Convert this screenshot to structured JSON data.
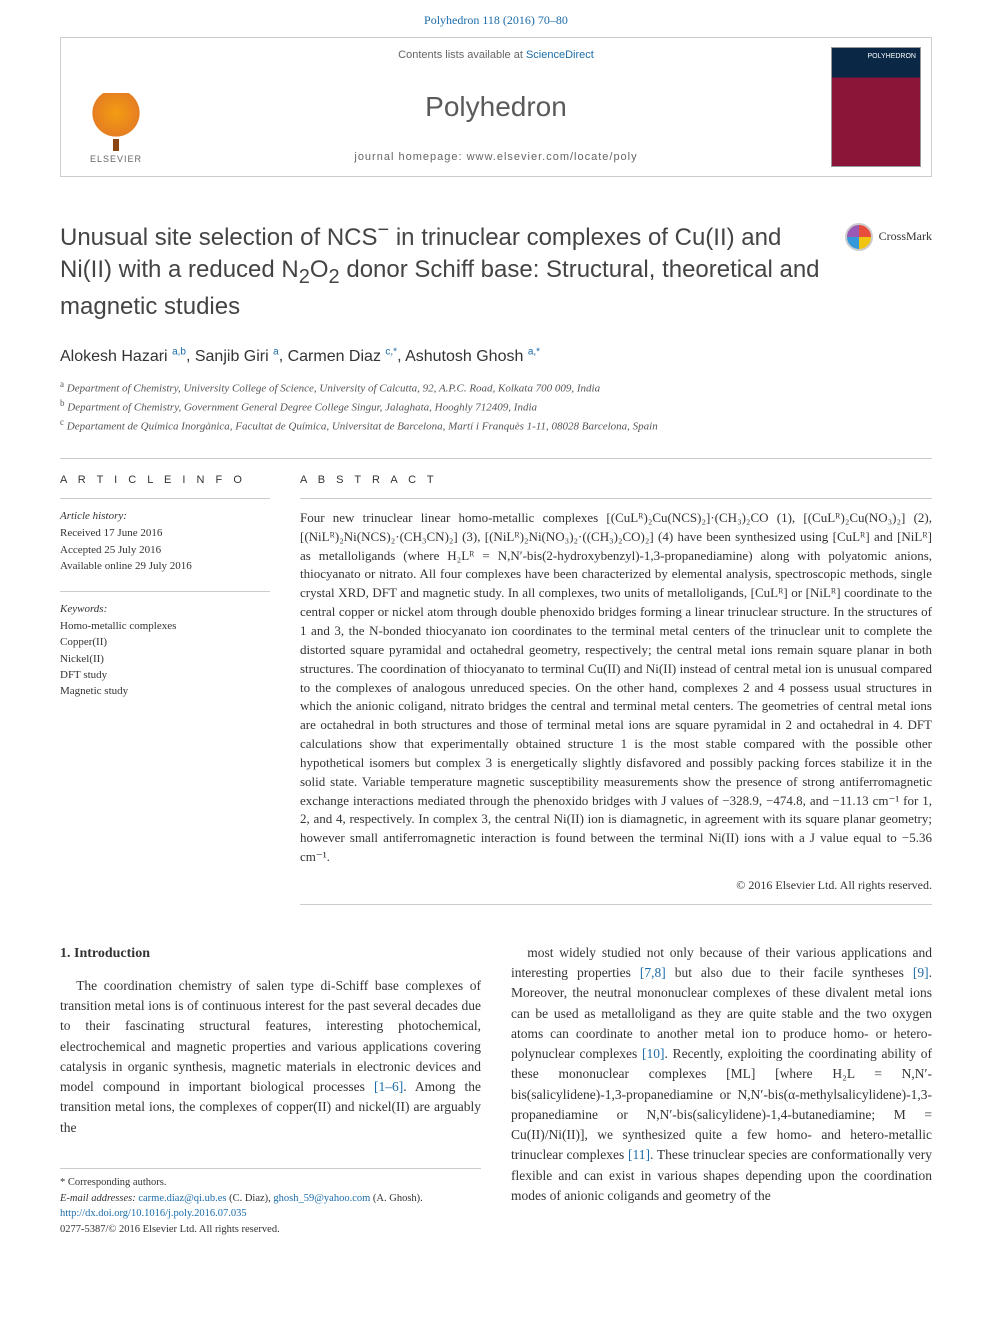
{
  "citation": "Polyhedron 118 (2016) 70–80",
  "header": {
    "contents_prefix": "Contents lists available at ",
    "contents_link": "ScienceDirect",
    "journal": "Polyhedron",
    "homepage_prefix": "journal homepage: ",
    "homepage_url": "www.elsevier.com/locate/poly",
    "publisher": "ELSEVIER",
    "cover_label": "POLYHEDRON"
  },
  "crossmark": "CrossMark",
  "title_parts": {
    "p1": "Unusual site selection of NCS",
    "sup1": "−",
    "p2": " in trinuclear complexes of Cu(II) and Ni(II) with a reduced N",
    "sub1": "2",
    "p3": "O",
    "sub2": "2",
    "p4": " donor Schiff base: Structural, theoretical and magnetic studies"
  },
  "authors": [
    {
      "name": "Alokesh Hazari",
      "aff": "a,b"
    },
    {
      "name": "Sanjib Giri",
      "aff": "a"
    },
    {
      "name": "Carmen Diaz",
      "aff": "c,*"
    },
    {
      "name": "Ashutosh Ghosh",
      "aff": "a,*"
    }
  ],
  "affiliations": [
    {
      "key": "a",
      "text": "Department of Chemistry, University College of Science, University of Calcutta, 92, A.P.C. Road, Kolkata 700 009, India"
    },
    {
      "key": "b",
      "text": "Department of Chemistry, Government General Degree College Singur, Jalaghata, Hooghly 712409, India"
    },
    {
      "key": "c",
      "text": "Departament de Química Inorgànica, Facultat de Química, Universitat de Barcelona, Martí i Franquès 1-11, 08028 Barcelona, Spain"
    }
  ],
  "article_info": {
    "heading": "A R T I C L E   I N F O",
    "history_h": "Article history:",
    "received": "Received 17 June 2016",
    "accepted": "Accepted 25 July 2016",
    "online": "Available online 29 July 2016",
    "keywords_h": "Keywords:",
    "keywords": [
      "Homo-metallic complexes",
      "Copper(II)",
      "Nickel(II)",
      "DFT study",
      "Magnetic study"
    ]
  },
  "abstract": {
    "heading": "A B S T R A C T",
    "text": "Four new trinuclear linear homo-metallic complexes [(CuLᴿ)₂Cu(NCS)₂]·(CH₃)₂CO (1), [(CuLᴿ)₂Cu(NO₃)₂] (2), [(NiLᴿ)₂Ni(NCS)₂·(CH₃CN)₂] (3), [(NiLᴿ)₂Ni(NO₃)₂·((CH₃)₂CO)₂] (4) have been synthesized using [CuLᴿ] and [NiLᴿ] as metalloligands (where H₂Lᴿ = N,N′-bis(2-hydroxybenzyl)-1,3-propanediamine) along with polyatomic anions, thiocyanato or nitrato. All four complexes have been characterized by elemental analysis, spectroscopic methods, single crystal XRD, DFT and magnetic study. In all complexes, two units of metalloligands, [CuLᴿ] or [NiLᴿ] coordinate to the central copper or nickel atom through double phenoxido bridges forming a linear trinuclear structure. In the structures of 1 and 3, the N-bonded thiocyanato ion coordinates to the terminal metal centers of the trinuclear unit to complete the distorted square pyramidal and octahedral geometry, respectively; the central metal ions remain square planar in both structures. The coordination of thiocyanato to terminal Cu(II) and Ni(II) instead of central metal ion is unusual compared to the complexes of analogous unreduced species. On the other hand, complexes 2 and 4 possess usual structures in which the anionic coligand, nitrato bridges the central and terminal metal centers. The geometries of central metal ions are octahedral in both structures and those of terminal metal ions are square pyramidal in 2 and octahedral in 4. DFT calculations show that experimentally obtained structure 1 is the most stable compared with the possible other hypothetical isomers but complex 3 is energetically slightly disfavored and possibly packing forces stabilize it in the solid state. Variable temperature magnetic susceptibility measurements show the presence of strong antiferromagnetic exchange interactions mediated through the phenoxido bridges with J values of −328.9, −474.8, and −11.13 cm⁻¹ for 1, 2, and 4, respectively. In complex 3, the central Ni(II) ion is diamagnetic, in agreement with its square planar geometry; however small antiferromagnetic interaction is found between the terminal Ni(II) ions with a J value equal to −5.36 cm⁻¹.",
    "copyright": "© 2016 Elsevier Ltd. All rights reserved."
  },
  "intro": {
    "heading": "1. Introduction",
    "col1": "The coordination chemistry of salen type di-Schiff base complexes of transition metal ions is of continuous interest for the past several decades due to their fascinating structural features, interesting photochemical, electrochemical and magnetic properties and various applications covering catalysis in organic synthesis, magnetic materials in electronic devices and model compound in important biological processes [1–6]. Among the transition metal ions, the complexes of copper(II) and nickel(II) are arguably the",
    "col2": "most widely studied not only because of their various applications and interesting properties [7,8] but also due to their facile syntheses [9]. Moreover, the neutral mononuclear complexes of these divalent metal ions can be used as metalloligand as they are quite stable and the two oxygen atoms can coordinate to another metal ion to produce homo- or hetero-polynuclear complexes [10]. Recently, exploiting the coordinating ability of these mononuclear complexes [ML] [where H₂L = N,N′-bis(salicylidene)-1,3-propanediamine or N,N′-bis(α-methylsalicylidene)-1,3-propanediamine or N,N′-bis(salicylidene)-1,4-butanediamine; M = Cu(II)/Ni(II)], we synthesized quite a few homo- and hetero-metallic trinuclear complexes [11]. These trinuclear species are conformationally very flexible and can exist in various shapes depending upon the coordination modes of anionic coligands and geometry of the",
    "ref_ranges": {
      "r1": "[1–6]",
      "r2": "[7,8]",
      "r3": "[9]",
      "r4": "[10]",
      "r5": "[11]"
    }
  },
  "footnotes": {
    "corr": "* Corresponding authors.",
    "email_label": "E-mail addresses:",
    "email1": "carme.diaz@qi.ub.es",
    "email1_who": "(C. Diaz),",
    "email2": "ghosh_59@yahoo.com",
    "email2_who": "(A. Ghosh).",
    "doi": "http://dx.doi.org/10.1016/j.poly.2016.07.035",
    "issn_line": "0277-5387/© 2016 Elsevier Ltd. All rights reserved."
  },
  "colors": {
    "link": "#1b6ca8",
    "text": "#333333",
    "border": "#cccccc"
  }
}
